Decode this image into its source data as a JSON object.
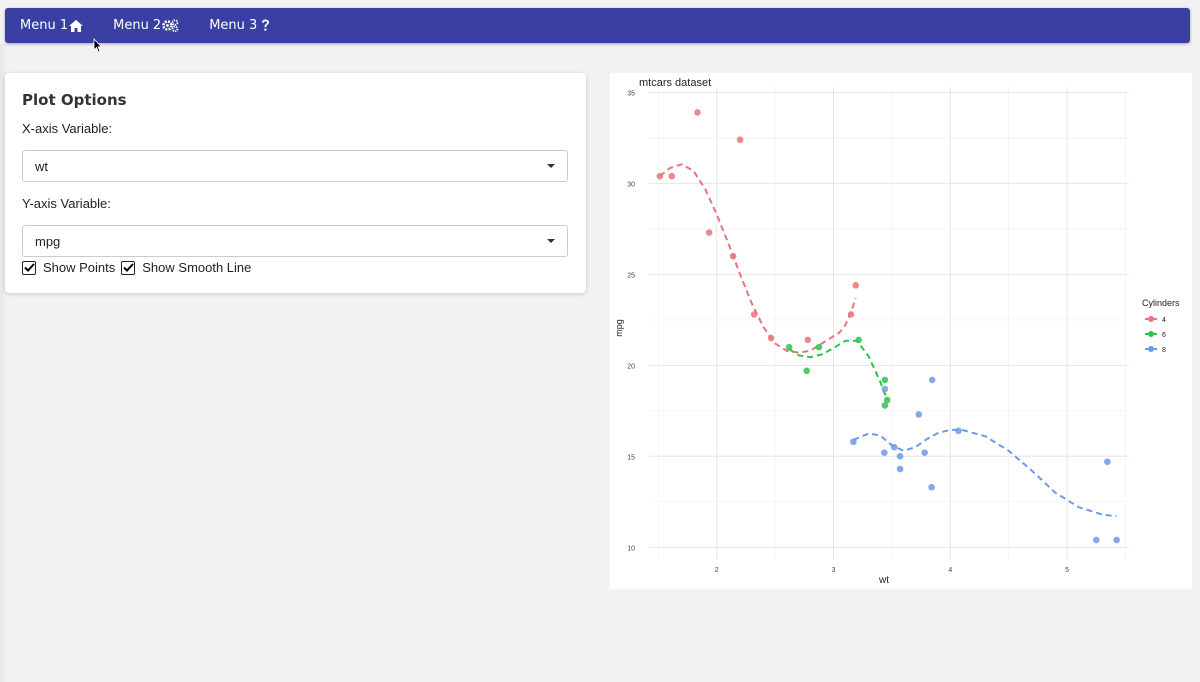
{
  "nav": {
    "items": [
      {
        "label": "Menu 1",
        "icon": "home-icon"
      },
      {
        "label": "Menu 2",
        "icon": "gears-icon"
      },
      {
        "label": "Menu 3",
        "icon": "question-icon"
      }
    ],
    "color": "#3a3fa3"
  },
  "panel": {
    "title": "Plot Options",
    "x_label": "X-axis Variable:",
    "x_value": "wt",
    "y_label": "Y-axis Variable:",
    "y_value": "mpg",
    "show_points_label": "Show Points",
    "show_points": true,
    "show_smooth_label": "Show Smooth Line",
    "show_smooth": true
  },
  "chart_data": {
    "type": "scatter",
    "title": "mtcars dataset",
    "xlabel": "wt",
    "ylabel": "mpg",
    "xlim": [
      1.42,
      5.53
    ],
    "ylim": [
      9.3,
      35.3
    ],
    "xticks": [
      2,
      3,
      4,
      5
    ],
    "yticks": [
      10,
      15,
      20,
      25,
      30,
      35
    ],
    "grid": true,
    "legend_title": "Cylinders",
    "legend_position": "right",
    "series": [
      {
        "name": "4",
        "color": "#e8747c",
        "points": [
          [
            1.615,
            30.4
          ],
          [
            1.835,
            33.9
          ],
          [
            1.513,
            30.4
          ],
          [
            2.2,
            32.4
          ],
          [
            1.935,
            27.3
          ],
          [
            2.14,
            26.0
          ],
          [
            2.32,
            22.8
          ],
          [
            2.465,
            21.5
          ],
          [
            2.78,
            21.4
          ],
          [
            3.15,
            22.8
          ],
          [
            3.19,
            24.4
          ]
        ],
        "smooth": [
          [
            1.513,
            30.4
          ],
          [
            1.6,
            30.85
          ],
          [
            1.7,
            31.05
          ],
          [
            1.8,
            30.7
          ],
          [
            1.9,
            29.7
          ],
          [
            2.0,
            28.3
          ],
          [
            2.1,
            26.7
          ],
          [
            2.2,
            25.0
          ],
          [
            2.3,
            23.4
          ],
          [
            2.4,
            22.1
          ],
          [
            2.5,
            21.2
          ],
          [
            2.6,
            20.8
          ],
          [
            2.7,
            20.7
          ],
          [
            2.8,
            20.8
          ],
          [
            2.9,
            21.2
          ],
          [
            3.0,
            21.6
          ],
          [
            3.05,
            21.8
          ],
          [
            3.1,
            22.2
          ],
          [
            3.15,
            22.9
          ],
          [
            3.19,
            23.7
          ]
        ]
      },
      {
        "name": "6",
        "color": "#2ec24b",
        "points": [
          [
            2.62,
            21.0
          ],
          [
            2.875,
            21.0
          ],
          [
            3.215,
            21.4
          ],
          [
            3.46,
            18.1
          ],
          [
            3.44,
            19.2
          ],
          [
            3.44,
            17.8
          ],
          [
            2.77,
            19.7
          ]
        ],
        "smooth": [
          [
            2.62,
            20.9
          ],
          [
            2.7,
            20.55
          ],
          [
            2.8,
            20.45
          ],
          [
            2.9,
            20.6
          ],
          [
            3.0,
            20.95
          ],
          [
            3.1,
            21.35
          ],
          [
            3.2,
            21.35
          ],
          [
            3.3,
            20.5
          ],
          [
            3.4,
            19.1
          ],
          [
            3.46,
            18.1
          ]
        ]
      },
      {
        "name": "8",
        "color": "#6b9be8",
        "points": [
          [
            3.44,
            18.7
          ],
          [
            3.57,
            14.3
          ],
          [
            4.07,
            16.4
          ],
          [
            3.73,
            17.3
          ],
          [
            3.78,
            15.2
          ],
          [
            5.25,
            10.4
          ],
          [
            5.424,
            10.4
          ],
          [
            5.345,
            14.7
          ],
          [
            3.52,
            15.5
          ],
          [
            3.435,
            15.2
          ],
          [
            3.84,
            13.3
          ],
          [
            3.845,
            19.2
          ],
          [
            3.17,
            15.8
          ],
          [
            3.57,
            15.0
          ]
        ],
        "smooth": [
          [
            3.17,
            15.9
          ],
          [
            3.3,
            16.25
          ],
          [
            3.4,
            16.15
          ],
          [
            3.5,
            15.6
          ],
          [
            3.6,
            15.3
          ],
          [
            3.7,
            15.5
          ],
          [
            3.8,
            15.95
          ],
          [
            3.9,
            16.3
          ],
          [
            4.0,
            16.45
          ],
          [
            4.1,
            16.45
          ],
          [
            4.3,
            16.1
          ],
          [
            4.5,
            15.3
          ],
          [
            4.7,
            14.2
          ],
          [
            4.9,
            13.0
          ],
          [
            5.1,
            12.2
          ],
          [
            5.3,
            11.8
          ],
          [
            5.424,
            11.7
          ]
        ]
      }
    ]
  }
}
